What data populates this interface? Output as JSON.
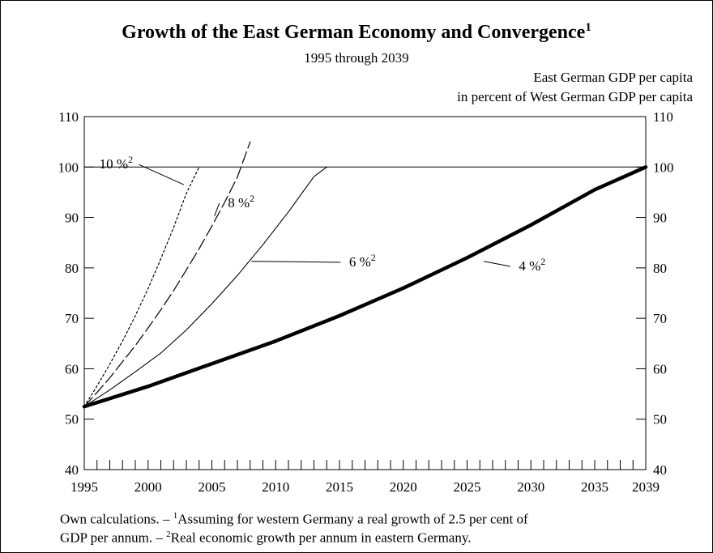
{
  "chart_data": {
    "type": "line",
    "title": "Growth of the East German Economy and Convergence",
    "title_superscript": "1",
    "subtitle": "1995 through 2039",
    "ylabel": [
      "East German GDP per capita",
      "in percent of West German GDP per capita"
    ],
    "xlim": [
      1995,
      2039
    ],
    "ylim": [
      40,
      110
    ],
    "x_ticks": [
      1995,
      2000,
      2005,
      2010,
      2015,
      2020,
      2025,
      2030,
      2035,
      2039
    ],
    "y_ticks": [
      40,
      50,
      60,
      70,
      80,
      90,
      100,
      110
    ],
    "reference_line": 100,
    "series": [
      {
        "name": "10 %",
        "superscript": "2",
        "style": "dotted",
        "x": [
          1995,
          1996,
          1997,
          1998,
          1999,
          2000,
          2001,
          2002,
          2003,
          2004
        ],
        "y": [
          52.5,
          56.6,
          60.9,
          65.5,
          70.5,
          75.9,
          81.8,
          88.0,
          94.8,
          100.0
        ]
      },
      {
        "name": "8 %",
        "superscript": "2",
        "style": "dashed",
        "x": [
          1995,
          1996,
          1997,
          1998,
          1999,
          2000,
          2001,
          2002,
          2003,
          2004,
          2005,
          2006,
          2007,
          2008
        ],
        "y": [
          52.5,
          55.3,
          58.2,
          61.4,
          64.6,
          68.1,
          71.7,
          75.5,
          79.6,
          83.8,
          88.3,
          93.0,
          98.0,
          105.0
        ]
      },
      {
        "name": "6 %",
        "superscript": "2",
        "style": "thin",
        "x": [
          1995,
          1997,
          1999,
          2001,
          2003,
          2005,
          2007,
          2009,
          2011,
          2013,
          2014
        ],
        "y": [
          52.5,
          55.8,
          59.4,
          63.1,
          67.7,
          72.9,
          78.5,
          84.6,
          91.1,
          98.1,
          100.0
        ]
      },
      {
        "name": "4 %",
        "superscript": "2",
        "style": "thick",
        "x": [
          1995,
          2000,
          2005,
          2010,
          2015,
          2020,
          2025,
          2030,
          2035,
          2039
        ],
        "y": [
          52.5,
          56.5,
          61.0,
          65.5,
          70.5,
          76.0,
          82.0,
          88.5,
          95.5,
          100.0
        ]
      }
    ],
    "labels": [
      {
        "text": "10 %",
        "sup": "2",
        "x": 1997.5,
        "y": 99.7,
        "target_x": 2002.8,
        "target_y": 96.5
      },
      {
        "text": "8 %",
        "sup": "2",
        "x": 2007.3,
        "y": 92.0,
        "target_x": 2005.2,
        "target_y": 90.3
      },
      {
        "text": "6 %",
        "sup": "2",
        "x": 2016.8,
        "y": 80.3,
        "target_x": 2008.1,
        "target_y": 81.3
      },
      {
        "text": "4 %",
        "sup": "2",
        "x": 2030.1,
        "y": 79.5,
        "target_x": 2026.3,
        "target_y": 81.3
      }
    ],
    "grid": false,
    "legend": "none"
  },
  "footnote": {
    "line1_a": "Own calculations. – ",
    "line1_sup": "1",
    "line1_b": "Assuming for western Germany a real growth of 2.5 per cent of",
    "line2_a": "GDP per annum. – ",
    "line2_sup": "2",
    "line2_b": "Real economic growth per annum  in  eastern Germany."
  }
}
